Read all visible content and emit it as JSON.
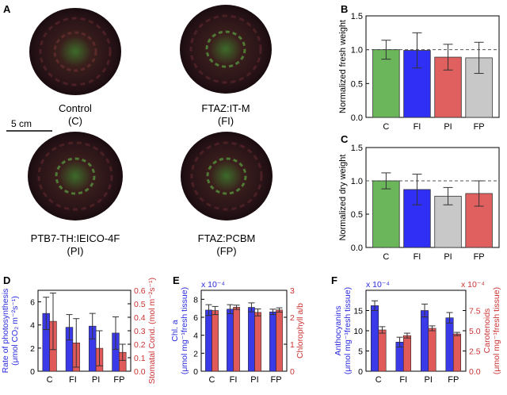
{
  "panel_letters": [
    "A",
    "B",
    "C",
    "D",
    "E",
    "F"
  ],
  "photos": [
    {
      "line1": "Control",
      "line2": "(C)"
    },
    {
      "line1": "FTAZ:IT-M",
      "line2": "(FI)"
    },
    {
      "line1": "PTB7-TH:IEICO-4F",
      "line2": "(PI)"
    },
    {
      "line1": "FTAZ:PCBM",
      "line2": "(FP)"
    }
  ],
  "scale_bar_label": "5 cm",
  "colors": {
    "C": "#6bb55a",
    "FI": "#2f2ff5",
    "PI": "#e06060",
    "FP": "#c8c8c8",
    "left_axis": "#2a2ae0",
    "right_axis": "#cc3333",
    "bar_blue": "#3a3ae8",
    "bar_red": "#e05a5a"
  },
  "chart_data": [
    {
      "id": "B",
      "type": "bar",
      "categories": [
        "C",
        "FI",
        "PI",
        "FP"
      ],
      "values": [
        1.0,
        0.99,
        0.89,
        0.88
      ],
      "errors": [
        0.14,
        0.26,
        0.19,
        0.23
      ],
      "bar_colors": [
        "#6bb55a",
        "#2f2ff5",
        "#e06060",
        "#c8c8c8"
      ],
      "ylabel": "Normalized fresh weight",
      "ylim": [
        0,
        1.5
      ],
      "yticks": [
        "0.0",
        "0.5",
        "1.0",
        "1.5"
      ],
      "reference_line": 1.0
    },
    {
      "id": "C",
      "type": "bar",
      "categories": [
        "C",
        "FI",
        "PI",
        "FP"
      ],
      "values": [
        1.0,
        0.87,
        0.77,
        0.81
      ],
      "errors": [
        0.12,
        0.23,
        0.13,
        0.19
      ],
      "bar_colors": [
        "#6bb55a",
        "#2f2ff5",
        "#c8c8c8",
        "#e06060"
      ],
      "ylabel": "Normalized dry weight",
      "ylim": [
        0,
        1.5
      ],
      "yticks": [
        "0.0",
        "0.5",
        "1.0",
        "1.5"
      ],
      "reference_line": 1.0
    },
    {
      "id": "D",
      "type": "bar",
      "categories": [
        "C",
        "FI",
        "PI",
        "FP"
      ],
      "left": {
        "ylabel_lines": [
          "Rate of photosynthesis",
          "(μmol CO₂ m⁻²s⁻¹)"
        ],
        "ylim": [
          0,
          7
        ],
        "yticks": [
          "0",
          "2",
          "4",
          "6"
        ],
        "values": [
          5.0,
          3.8,
          3.9,
          3.3
        ],
        "errors": [
          1.4,
          1.1,
          1.1,
          1.4
        ]
      },
      "right": {
        "ylabel": "Stomatal Cond. (mol m⁻²s⁻¹)",
        "ylim": [
          0,
          0.6
        ],
        "yticks": [
          "0.0",
          "0.1",
          "0.2",
          "0.3",
          "0.4",
          "0.5",
          "0.6"
        ],
        "values": [
          0.37,
          0.21,
          0.17,
          0.14
        ],
        "errors": [
          0.21,
          0.18,
          0.13,
          0.06
        ]
      }
    },
    {
      "id": "E",
      "type": "bar",
      "categories": [
        "C",
        "FI",
        "PI",
        "FP"
      ],
      "left": {
        "ylabel_lines": [
          "Chl. a",
          "(μmol mg⁻¹fresh tissue)"
        ],
        "multiplier": "x 10⁻⁴",
        "ylim": [
          0,
          9
        ],
        "yticks": [
          "0",
          "2",
          "4",
          "6",
          "8"
        ],
        "values": [
          6.8,
          6.9,
          7.1,
          6.6
        ],
        "errors": [
          0.6,
          0.5,
          0.5,
          0.3
        ]
      },
      "right": {
        "ylabel": "Chlorophyll a/b",
        "ylim": [
          0,
          3
        ],
        "yticks": [
          "0",
          "1",
          "2",
          "3"
        ],
        "values": [
          2.25,
          2.37,
          2.18,
          2.27
        ],
        "errors": [
          0.15,
          0.08,
          0.13,
          0.08
        ]
      }
    },
    {
      "id": "F",
      "type": "bar",
      "categories": [
        "C",
        "FI",
        "PI",
        "FP"
      ],
      "left": {
        "ylabel_lines": [
          "Anthocyanins",
          "(μmol mg⁻¹fresh tissue)"
        ],
        "multiplier": "x 10⁻⁴",
        "ylim": [
          0,
          20
        ],
        "yticks": [
          "0",
          "5",
          "10",
          "15"
        ],
        "values": [
          16.2,
          7.2,
          15.0,
          13.2
        ],
        "errors": [
          1.2,
          1.2,
          1.6,
          1.3
        ]
      },
      "right": {
        "ylabel_lines": [
          "Carotenoids",
          "(μmol mg⁻¹fresh tissue)"
        ],
        "multiplier": "x 10⁻⁴",
        "ylim": [
          0,
          10
        ],
        "yticks": [
          "0.0",
          "2.5",
          "5.0",
          "7.5"
        ],
        "values": [
          5.1,
          4.4,
          5.3,
          4.6
        ],
        "errors": [
          0.4,
          0.3,
          0.3,
          0.2
        ]
      }
    }
  ]
}
